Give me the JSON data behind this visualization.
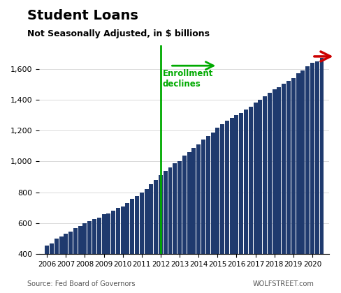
{
  "title": "Student Loans",
  "subtitle": "Not Seasonally Adjusted, in $ billions",
  "bar_color": "#1f3a6e",
  "vline_color": "#00aa00",
  "vline_x": 2012.0,
  "ylim": [
    400,
    1750
  ],
  "yticks": [
    400,
    600,
    800,
    1000,
    1200,
    1400,
    1600
  ],
  "source_text": "Source: Fed Board of Governors",
  "watermark": "WOLFSTREET.com",
  "annotation_enrollment": "Enrollment\ndeclines",
  "annotation_color_green": "#00aa00",
  "annotation_color_red": "#cc0000",
  "quarters": [
    2006.0,
    2006.25,
    2006.5,
    2006.75,
    2007.0,
    2007.25,
    2007.5,
    2007.75,
    2008.0,
    2008.25,
    2008.5,
    2008.75,
    2009.0,
    2009.25,
    2009.5,
    2009.75,
    2010.0,
    2010.25,
    2010.5,
    2010.75,
    2011.0,
    2011.25,
    2011.5,
    2011.75,
    2012.0,
    2012.25,
    2012.5,
    2012.75,
    2013.0,
    2013.25,
    2013.5,
    2013.75,
    2014.0,
    2014.25,
    2014.5,
    2014.75,
    2015.0,
    2015.25,
    2015.5,
    2015.75,
    2016.0,
    2016.25,
    2016.5,
    2016.75,
    2017.0,
    2017.25,
    2017.5,
    2017.75,
    2018.0,
    2018.25,
    2018.5,
    2018.75,
    2019.0,
    2019.25,
    2019.5,
    2019.75,
    2020.0,
    2020.25,
    2020.5
  ],
  "values": [
    455,
    470,
    500,
    515,
    530,
    545,
    570,
    580,
    600,
    615,
    625,
    635,
    660,
    665,
    680,
    700,
    710,
    730,
    760,
    775,
    800,
    820,
    855,
    880,
    910,
    940,
    960,
    990,
    1000,
    1040,
    1060,
    1090,
    1110,
    1140,
    1165,
    1185,
    1220,
    1240,
    1265,
    1280,
    1300,
    1315,
    1335,
    1355,
    1380,
    1400,
    1420,
    1445,
    1465,
    1480,
    1505,
    1520,
    1540,
    1570,
    1590,
    1615,
    1640,
    1650,
    1670
  ],
  "xtick_years": [
    2006,
    2007,
    2008,
    2009,
    2010,
    2011,
    2012,
    2013,
    2014,
    2015,
    2016,
    2017,
    2018,
    2019,
    2020
  ]
}
